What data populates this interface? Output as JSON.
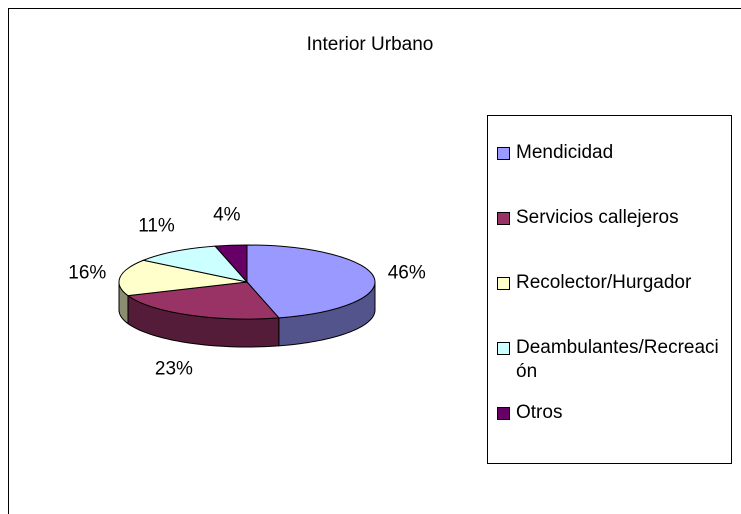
{
  "chart_data": {
    "type": "pie",
    "title": "Interior Urbano",
    "categories": [
      "Mendicidad",
      "Servicios callejeros",
      "Recolector/Hurgador",
      "Deambulantes/Recreación",
      "Otros"
    ],
    "values": [
      46,
      23,
      16,
      11,
      4
    ],
    "value_labels": [
      "46%",
      "23%",
      "16%",
      "11%",
      "4%"
    ],
    "colors": [
      "#9999ff",
      "#993366",
      "#ffffcc",
      "#ccffff",
      "#660066"
    ]
  }
}
